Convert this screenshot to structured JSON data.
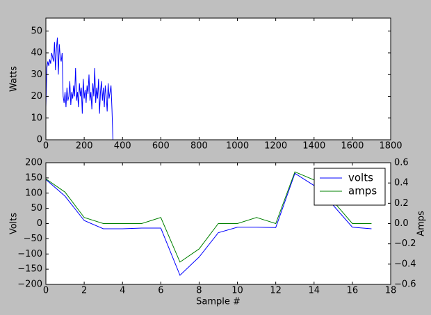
{
  "chart_data": [
    {
      "type": "line",
      "ylabel": "Watts",
      "color": "#0000ff",
      "x": [
        0,
        5,
        10,
        15,
        20,
        25,
        30,
        35,
        40,
        45,
        50,
        55,
        60,
        65,
        70,
        75,
        80,
        85,
        90,
        95,
        100,
        105,
        110,
        115,
        120,
        125,
        130,
        135,
        140,
        145,
        150,
        155,
        160,
        165,
        170,
        175,
        180,
        185,
        190,
        195,
        200,
        205,
        210,
        215,
        220,
        225,
        230,
        235,
        240,
        245,
        250,
        255,
        260,
        265,
        270,
        275,
        280,
        285,
        290,
        295,
        300,
        305,
        310,
        315,
        320,
        325,
        330,
        335,
        340,
        345,
        350,
        1800
      ],
      "values": [
        15,
        33,
        36,
        34,
        37,
        35,
        40,
        38,
        36,
        45,
        32,
        42,
        47,
        30,
        44,
        38,
        36,
        40,
        20,
        17,
        22,
        15,
        24,
        18,
        20,
        27,
        16,
        22,
        19,
        25,
        20,
        33,
        18,
        22,
        15,
        26,
        20,
        24,
        12,
        28,
        19,
        23,
        17,
        25,
        21,
        30,
        18,
        22,
        14,
        26,
        20,
        33,
        17,
        24,
        19,
        28,
        12,
        22,
        27,
        18,
        24,
        15,
        25,
        20,
        13,
        26,
        19,
        22,
        25,
        14,
        0,
        0
      ],
      "xlim": [
        0,
        1800
      ],
      "xticks": [
        0,
        200,
        400,
        600,
        800,
        1000,
        1200,
        1400,
        1600,
        1800
      ],
      "ylim": [
        0,
        56
      ],
      "yticks": [
        0,
        10,
        20,
        30,
        40,
        50
      ]
    },
    {
      "type": "line",
      "xlabel": "Sample #",
      "ylabel": "Volts",
      "y2label": "Amps",
      "legend": "upper right",
      "x": [
        0,
        1,
        2,
        3,
        4,
        5,
        6,
        7,
        8,
        9,
        10,
        11,
        12,
        13,
        14,
        15,
        16,
        17
      ],
      "series": [
        {
          "name": "volts",
          "color": "#0000ff",
          "values": [
            145,
            90,
            10,
            -17,
            -17,
            -15,
            -15,
            -170,
            -110,
            -30,
            -12,
            -12,
            -13,
            165,
            125,
            60,
            -12,
            -17
          ]
        },
        {
          "name": "amps",
          "color": "#008000",
          "axis": "y2",
          "values": [
            0.44,
            0.31,
            0.06,
            0,
            0,
            0,
            0.06,
            -0.38,
            -0.25,
            0,
            0,
            0.06,
            0,
            0.51,
            0.43,
            0.22,
            0,
            0
          ]
        }
      ],
      "xlim": [
        0,
        18
      ],
      "xticks": [
        0,
        2,
        4,
        6,
        8,
        10,
        12,
        14,
        16,
        18
      ],
      "ylim": [
        -200,
        200
      ],
      "yticks": [
        {
          "value": -200,
          "label": "−200"
        },
        {
          "value": -150,
          "label": "−150"
        },
        {
          "value": -100,
          "label": "−100"
        },
        {
          "value": -50,
          "label": "−50"
        },
        0,
        50,
        100,
        150,
        200
      ],
      "y2lim": [
        -0.6,
        0.6
      ],
      "y2ticks": [
        {
          "value": -0.6,
          "label": "−0.6"
        },
        {
          "value": -0.4,
          "label": "−0.4"
        },
        {
          "value": -0.2,
          "label": "−0.2"
        },
        {
          "value": 0,
          "label": "0.0"
        },
        0.2,
        0.4,
        0.6
      ]
    }
  ]
}
